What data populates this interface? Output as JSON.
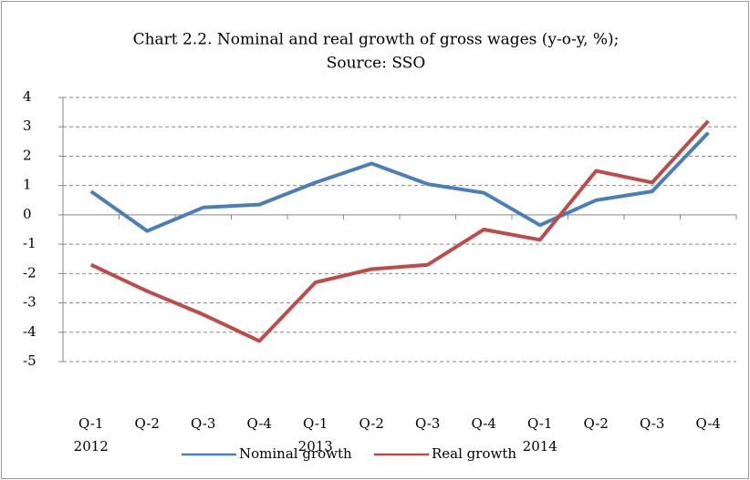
{
  "chart_data": {
    "type": "line",
    "title": "Chart 2.2. Nominal and real growth of gross wages (y-o-y, %);",
    "subtitle": "Source: SSO",
    "categories": [
      "Q-1",
      "Q-2",
      "Q-3",
      "Q-4",
      "Q-1",
      "Q-2",
      "Q-3",
      "Q-4",
      "Q-1",
      "Q-2",
      "Q-3",
      "Q-4"
    ],
    "year_labels": [
      "2012",
      "2013",
      "2014"
    ],
    "series": [
      {
        "name": "Nominal growth",
        "color": "#4a7ebb",
        "values": [
          0.8,
          -0.55,
          0.25,
          0.35,
          1.1,
          1.75,
          1.05,
          0.75,
          -0.35,
          0.5,
          0.8,
          2.8
        ]
      },
      {
        "name": "Real growth",
        "color": "#be4b48",
        "values": [
          -1.7,
          -2.6,
          -3.4,
          -4.3,
          -2.3,
          -1.85,
          -1.7,
          -0.5,
          -0.85,
          1.5,
          1.1,
          3.2
        ]
      }
    ],
    "ylim": [
      -5,
      4
    ],
    "yticks": [
      -5,
      -4,
      -3,
      -2,
      -1,
      0,
      1,
      2,
      3,
      4
    ],
    "grid": true,
    "legend": "bottom"
  }
}
